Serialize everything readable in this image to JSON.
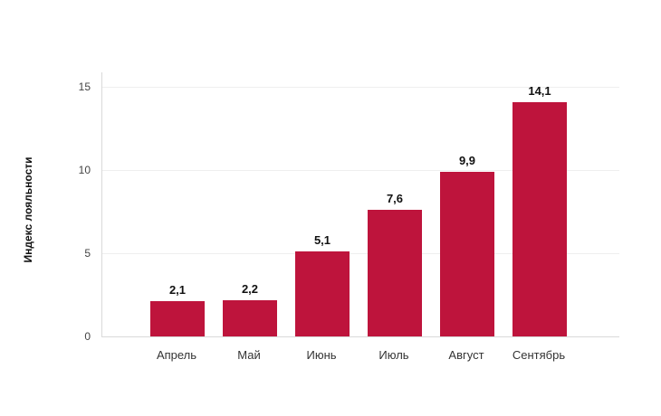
{
  "chart_data": {
    "type": "bar",
    "categories": [
      "Апрель",
      "Май",
      "Июнь",
      "Июль",
      "Август",
      "Сентябрь"
    ],
    "values": [
      2.1,
      2.2,
      5.1,
      7.6,
      9.9,
      14.1
    ],
    "value_labels": [
      "2,1",
      "2,2",
      "5,1",
      "7,6",
      "9,9",
      "14,1"
    ],
    "title": "",
    "xlabel": "",
    "ylabel": "Индекс лояльности",
    "ylim": [
      0,
      15
    ],
    "yticks": [
      0,
      5,
      10,
      15
    ],
    "ytick_labels": [
      "0",
      "5",
      "10",
      "15"
    ],
    "grid": true,
    "legend": false
  },
  "colors": {
    "bar": "#BE143C",
    "gridline": "#EFEFEF",
    "axis_line": "#D9D9D9",
    "tick_text": "#444444",
    "category_text": "#333333",
    "value_text": "#111111",
    "background": "#FFFFFF"
  }
}
